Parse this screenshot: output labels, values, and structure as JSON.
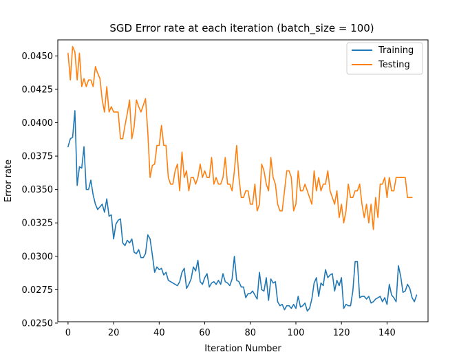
{
  "chart_data": {
    "type": "line",
    "title": "SGD Error rate at each iteration (batch_size = 100)",
    "xlabel": "Iteration Number",
    "ylabel": "Error rate",
    "xlim": [
      -4.5,
      158
    ],
    "ylim": [
      0.0251,
      0.0462
    ],
    "xticks": [
      0,
      20,
      40,
      60,
      80,
      100,
      120,
      140
    ],
    "xtick_labels": [
      "0",
      "20",
      "40",
      "60",
      "80",
      "100",
      "120",
      "140"
    ],
    "yticks": [
      0.025,
      0.0275,
      0.03,
      0.0325,
      0.035,
      0.0375,
      0.04,
      0.0425,
      0.045
    ],
    "ytick_labels": [
      "0.0250",
      "0.0275",
      "0.0300",
      "0.0325",
      "0.0350",
      "0.0375",
      "0.0400",
      "0.0425",
      "0.0450"
    ],
    "grid": false,
    "legend_position": "top-right",
    "series": [
      {
        "name": "Training",
        "color": "#1f77b4",
        "values": [
          0.0382,
          0.0388,
          0.0389,
          0.0409,
          0.0353,
          0.0367,
          0.0366,
          0.0382,
          0.035,
          0.035,
          0.0357,
          0.0346,
          0.0339,
          0.0335,
          0.0337,
          0.0339,
          0.0333,
          0.0343,
          0.033,
          0.0331,
          0.0313,
          0.0324,
          0.0327,
          0.0328,
          0.031,
          0.0308,
          0.0312,
          0.031,
          0.0313,
          0.0303,
          0.0302,
          0.0305,
          0.0299,
          0.0299,
          0.0302,
          0.0316,
          0.0313,
          0.0301,
          0.0288,
          0.0292,
          0.029,
          0.0291,
          0.0286,
          0.0288,
          0.0282,
          0.0281,
          0.028,
          0.0279,
          0.0278,
          0.0281,
          0.0288,
          0.0291,
          0.0276,
          0.0279,
          0.0283,
          0.0292,
          0.0289,
          0.0297,
          0.0281,
          0.0279,
          0.0284,
          0.0287,
          0.0277,
          0.028,
          0.0281,
          0.0279,
          0.0282,
          0.0279,
          0.0287,
          0.0281,
          0.028,
          0.0278,
          0.0283,
          0.03,
          0.0282,
          0.0281,
          0.0277,
          0.0277,
          0.0269,
          0.0272,
          0.0272,
          0.0274,
          0.0271,
          0.0268,
          0.0288,
          0.0275,
          0.0274,
          0.0284,
          0.0267,
          0.0283,
          0.028,
          0.0281,
          0.0266,
          0.0263,
          0.0264,
          0.026,
          0.0263,
          0.0263,
          0.0261,
          0.0264,
          0.0261,
          0.027,
          0.0262,
          0.0263,
          0.0265,
          0.0259,
          0.0261,
          0.0268,
          0.028,
          0.0284,
          0.027,
          0.028,
          0.0278,
          0.029,
          0.0284,
          0.0286,
          0.0287,
          0.0274,
          0.0282,
          0.0278,
          0.0284,
          0.0261,
          0.0264,
          0.0263,
          0.0263,
          0.0274,
          0.0296,
          0.0296,
          0.0269,
          0.027,
          0.027,
          0.0268,
          0.027,
          0.0265,
          0.0266,
          0.0268,
          0.0269,
          0.027,
          0.0266,
          0.0269,
          0.0264,
          0.0279,
          0.0271,
          0.0269,
          0.0266,
          0.0293,
          0.0285,
          0.0273,
          0.0274,
          0.0279,
          0.0276,
          0.0269,
          0.0266,
          0.0271
        ]
      },
      {
        "name": "Testing",
        "color": "#ff7f0e",
        "values": [
          0.0452,
          0.0432,
          0.0457,
          0.0453,
          0.0432,
          0.0452,
          0.0427,
          0.0433,
          0.0427,
          0.0432,
          0.0432,
          0.0427,
          0.0442,
          0.0437,
          0.0433,
          0.0417,
          0.0408,
          0.0427,
          0.0408,
          0.0412,
          0.0408,
          0.0408,
          0.0408,
          0.0388,
          0.0388,
          0.0398,
          0.0407,
          0.0417,
          0.0388,
          0.0397,
          0.0417,
          0.0412,
          0.0408,
          0.0413,
          0.0418,
          0.0393,
          0.0359,
          0.0368,
          0.0369,
          0.0383,
          0.0383,
          0.0398,
          0.0383,
          0.0383,
          0.0359,
          0.0354,
          0.0354,
          0.0364,
          0.0369,
          0.0349,
          0.0378,
          0.0359,
          0.0364,
          0.0349,
          0.0359,
          0.0359,
          0.0354,
          0.0359,
          0.0369,
          0.0359,
          0.0364,
          0.0359,
          0.0359,
          0.0374,
          0.0354,
          0.0359,
          0.0354,
          0.0354,
          0.0359,
          0.0374,
          0.0354,
          0.0354,
          0.0349,
          0.0364,
          0.0383,
          0.0359,
          0.0344,
          0.0344,
          0.0349,
          0.0349,
          0.0339,
          0.0339,
          0.0354,
          0.0334,
          0.0339,
          0.0369,
          0.0364,
          0.0354,
          0.0349,
          0.0374,
          0.0359,
          0.0354,
          0.0339,
          0.0334,
          0.0334,
          0.0349,
          0.0364,
          0.0364,
          0.0359,
          0.0334,
          0.0339,
          0.0364,
          0.0349,
          0.0349,
          0.0354,
          0.0349,
          0.0344,
          0.0339,
          0.0364,
          0.0349,
          0.0359,
          0.0349,
          0.0354,
          0.0354,
          0.0364,
          0.0349,
          0.0344,
          0.0339,
          0.0349,
          0.0329,
          0.0339,
          0.0325,
          0.0334,
          0.0354,
          0.0344,
          0.0344,
          0.0349,
          0.0349,
          0.0354,
          0.0339,
          0.0329,
          0.0339,
          0.0325,
          0.0339,
          0.032,
          0.0344,
          0.0329,
          0.0354,
          0.0354,
          0.0359,
          0.0344,
          0.0359,
          0.0349,
          0.0349,
          0.0359,
          0.0359,
          0.0359,
          0.0359,
          0.0359,
          0.0344,
          0.0344,
          0.0344
        ]
      }
    ]
  }
}
